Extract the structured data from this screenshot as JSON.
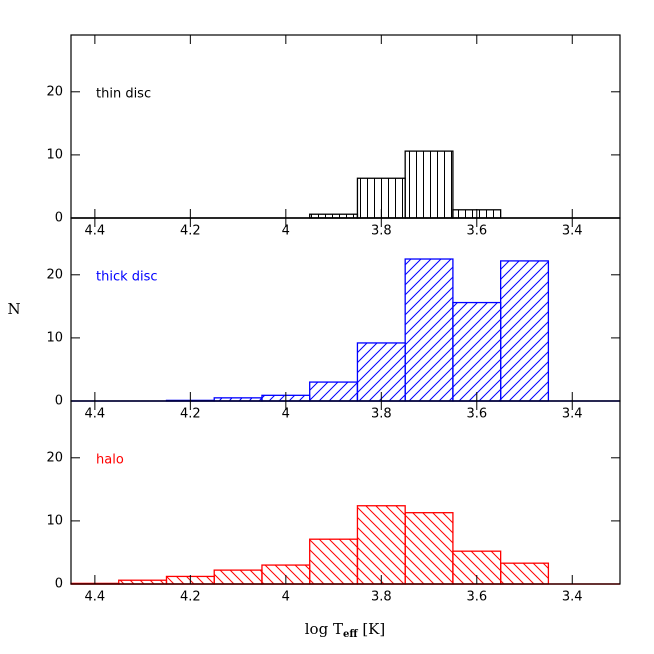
{
  "chart_data": [
    {
      "type": "histogram",
      "label": "thin disc",
      "color": "#000000",
      "hatch": "vertical",
      "bins": [
        3.95,
        3.85,
        3.75,
        3.65,
        3.55
      ],
      "values": [
        0.6,
        6.3,
        10.6,
        1.3
      ],
      "xlim": [
        4.45,
        3.3
      ],
      "ylim": [
        0,
        29
      ],
      "xticks": [
        4.4,
        4.2,
        4,
        3.8,
        3.6,
        3.4
      ],
      "yticks": [
        0,
        10,
        20
      ]
    },
    {
      "type": "histogram",
      "label": "thick disc",
      "color": "#0000ff",
      "hatch": "forward",
      "bins": [
        4.45,
        4.35,
        4.25,
        4.15,
        4.05,
        3.95,
        3.85,
        3.75,
        3.65,
        3.55,
        3.45
      ],
      "values": [
        0,
        0,
        0.1,
        0.5,
        0.9,
        3.0,
        9.2,
        22.5,
        15.6,
        22.2
      ],
      "xlim": [
        4.45,
        3.3
      ],
      "ylim": [
        0,
        29
      ],
      "xticks": [
        4.4,
        4.2,
        4,
        3.8,
        3.6,
        3.4
      ],
      "yticks": [
        0,
        10,
        20
      ],
      "y_label": "N"
    },
    {
      "type": "histogram",
      "label": "halo",
      "color": "#ff0000",
      "hatch": "backward",
      "bins": [
        4.45,
        4.35,
        4.25,
        4.15,
        4.05,
        3.95,
        3.85,
        3.75,
        3.65,
        3.55,
        3.45
      ],
      "values": [
        0.1,
        0.6,
        1.2,
        2.2,
        3.0,
        7.1,
        12.4,
        11.3,
        5.2,
        3.3
      ],
      "xlim": [
        4.45,
        3.3
      ],
      "ylim": [
        0,
        29
      ],
      "xticks": [
        4.4,
        4.2,
        4,
        3.8,
        3.6,
        3.4
      ],
      "yticks": [
        0,
        10,
        20
      ],
      "x_label": "log T",
      "x_label_sub": "eff",
      "x_label_unit": "[K]"
    }
  ]
}
